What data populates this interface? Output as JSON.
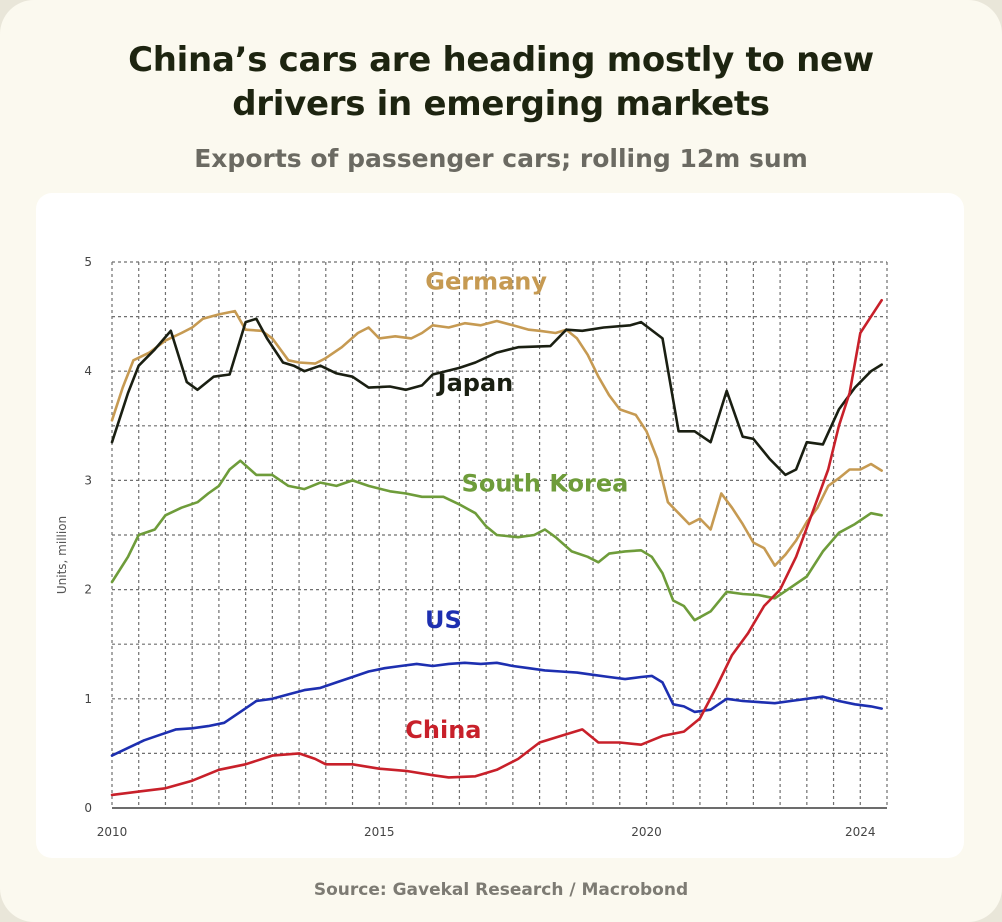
{
  "title": "China’s cars are heading mostly to new\ndrivers in emerging markets",
  "subtitle": "Exports of passenger cars; rolling 12m sum",
  "source": "Source: Gavekal Research / Macrobond",
  "chart_data": {
    "type": "line",
    "ylabel": "Units, million",
    "xlabel": "",
    "xlim": [
      2010,
      2024.5
    ],
    "ylim": [
      0,
      5
    ],
    "x_ticks": [
      {
        "value": 2010,
        "label": "2010"
      },
      {
        "value": 2015,
        "label": "2015"
      },
      {
        "value": 2020,
        "label": "2020"
      },
      {
        "value": 2024,
        "label": "2024"
      }
    ],
    "y_ticks": [
      {
        "value": 0,
        "label": "0"
      },
      {
        "value": 1,
        "label": "1"
      },
      {
        "value": 2,
        "label": "2"
      },
      {
        "value": 3,
        "label": "3"
      },
      {
        "value": 4,
        "label": "4"
      },
      {
        "value": 5,
        "label": "5"
      }
    ],
    "grid": true,
    "series": [
      {
        "name": "Germany",
        "color": "#c69a52",
        "label_at": [
          2017,
          4.75
        ],
        "points": [
          [
            2010,
            3.55
          ],
          [
            2010.2,
            3.85
          ],
          [
            2010.4,
            4.1
          ],
          [
            2010.7,
            4.17
          ],
          [
            2011,
            4.28
          ],
          [
            2011.3,
            4.35
          ],
          [
            2011.5,
            4.4
          ],
          [
            2011.7,
            4.48
          ],
          [
            2012,
            4.52
          ],
          [
            2012.3,
            4.55
          ],
          [
            2012.5,
            4.38
          ],
          [
            2012.8,
            4.37
          ],
          [
            2013,
            4.3
          ],
          [
            2013.3,
            4.1
          ],
          [
            2013.5,
            4.08
          ],
          [
            2013.8,
            4.07
          ],
          [
            2014,
            4.12
          ],
          [
            2014.3,
            4.22
          ],
          [
            2014.6,
            4.35
          ],
          [
            2014.8,
            4.4
          ],
          [
            2015,
            4.3
          ],
          [
            2015.3,
            4.32
          ],
          [
            2015.6,
            4.3
          ],
          [
            2015.8,
            4.35
          ],
          [
            2016,
            4.42
          ],
          [
            2016.3,
            4.4
          ],
          [
            2016.6,
            4.44
          ],
          [
            2016.9,
            4.42
          ],
          [
            2017.2,
            4.46
          ],
          [
            2017.5,
            4.42
          ],
          [
            2017.8,
            4.38
          ],
          [
            2018,
            4.37
          ],
          [
            2018.3,
            4.35
          ],
          [
            2018.5,
            4.38
          ],
          [
            2018.7,
            4.3
          ],
          [
            2018.9,
            4.15
          ],
          [
            2019.1,
            3.95
          ],
          [
            2019.3,
            3.78
          ],
          [
            2019.5,
            3.65
          ],
          [
            2019.8,
            3.6
          ],
          [
            2020,
            3.45
          ],
          [
            2020.2,
            3.2
          ],
          [
            2020.4,
            2.8
          ],
          [
            2020.6,
            2.7
          ],
          [
            2020.8,
            2.6
          ],
          [
            2021,
            2.65
          ],
          [
            2021.2,
            2.55
          ],
          [
            2021.4,
            2.88
          ],
          [
            2021.6,
            2.75
          ],
          [
            2021.8,
            2.6
          ],
          [
            2022,
            2.43
          ],
          [
            2022.2,
            2.38
          ],
          [
            2022.4,
            2.22
          ],
          [
            2022.6,
            2.32
          ],
          [
            2022.8,
            2.45
          ],
          [
            2023,
            2.62
          ],
          [
            2023.2,
            2.75
          ],
          [
            2023.4,
            2.95
          ],
          [
            2023.6,
            3.02
          ],
          [
            2023.8,
            3.1
          ],
          [
            2024,
            3.1
          ],
          [
            2024.2,
            3.15
          ],
          [
            2024.4,
            3.09
          ]
        ]
      },
      {
        "name": "Japan",
        "color": "#1a1f12",
        "label_at": [
          2016.8,
          3.82
        ],
        "points": [
          [
            2010,
            3.35
          ],
          [
            2010.3,
            3.8
          ],
          [
            2010.5,
            4.05
          ],
          [
            2010.8,
            4.2
          ],
          [
            2011.1,
            4.37
          ],
          [
            2011.4,
            3.9
          ],
          [
            2011.6,
            3.83
          ],
          [
            2011.9,
            3.95
          ],
          [
            2012.2,
            3.97
          ],
          [
            2012.5,
            4.45
          ],
          [
            2012.7,
            4.48
          ],
          [
            2012.9,
            4.3
          ],
          [
            2013.2,
            4.08
          ],
          [
            2013.4,
            4.05
          ],
          [
            2013.6,
            4.0
          ],
          [
            2013.9,
            4.05
          ],
          [
            2014.2,
            3.98
          ],
          [
            2014.5,
            3.95
          ],
          [
            2014.8,
            3.85
          ],
          [
            2015.2,
            3.86
          ],
          [
            2015.5,
            3.83
          ],
          [
            2015.8,
            3.87
          ],
          [
            2016,
            3.97
          ],
          [
            2016.5,
            4.03
          ],
          [
            2016.8,
            4.08
          ],
          [
            2017.2,
            4.17
          ],
          [
            2017.6,
            4.22
          ],
          [
            2018.2,
            4.23
          ],
          [
            2018.5,
            4.38
          ],
          [
            2018.8,
            4.37
          ],
          [
            2019.2,
            4.4
          ],
          [
            2019.7,
            4.42
          ],
          [
            2019.9,
            4.45
          ],
          [
            2020.3,
            4.3
          ],
          [
            2020.6,
            3.45
          ],
          [
            2020.9,
            3.45
          ],
          [
            2021.2,
            3.35
          ],
          [
            2021.5,
            3.82
          ],
          [
            2021.8,
            3.4
          ],
          [
            2022,
            3.38
          ],
          [
            2022.3,
            3.2
          ],
          [
            2022.6,
            3.05
          ],
          [
            2022.8,
            3.1
          ],
          [
            2023,
            3.35
          ],
          [
            2023.3,
            3.33
          ],
          [
            2023.6,
            3.65
          ],
          [
            2023.9,
            3.85
          ],
          [
            2024.2,
            4.0
          ],
          [
            2024.4,
            4.06
          ]
        ]
      },
      {
        "name": "South Korea",
        "color": "#6e9c3a",
        "label_at": [
          2018.1,
          2.9
        ],
        "points": [
          [
            2010,
            2.07
          ],
          [
            2010.3,
            2.3
          ],
          [
            2010.5,
            2.5
          ],
          [
            2010.8,
            2.55
          ],
          [
            2011,
            2.68
          ],
          [
            2011.3,
            2.75
          ],
          [
            2011.6,
            2.8
          ],
          [
            2011.8,
            2.88
          ],
          [
            2012,
            2.95
          ],
          [
            2012.2,
            3.1
          ],
          [
            2012.4,
            3.18
          ],
          [
            2012.7,
            3.05
          ],
          [
            2013,
            3.05
          ],
          [
            2013.3,
            2.95
          ],
          [
            2013.6,
            2.92
          ],
          [
            2013.9,
            2.98
          ],
          [
            2014.2,
            2.95
          ],
          [
            2014.5,
            3.0
          ],
          [
            2014.8,
            2.95
          ],
          [
            2015.2,
            2.9
          ],
          [
            2015.5,
            2.88
          ],
          [
            2015.8,
            2.85
          ],
          [
            2016.2,
            2.85
          ],
          [
            2016.5,
            2.78
          ],
          [
            2016.8,
            2.7
          ],
          [
            2017,
            2.58
          ],
          [
            2017.2,
            2.5
          ],
          [
            2017.6,
            2.48
          ],
          [
            2017.9,
            2.5
          ],
          [
            2018.1,
            2.55
          ],
          [
            2018.3,
            2.48
          ],
          [
            2018.6,
            2.35
          ],
          [
            2018.9,
            2.3
          ],
          [
            2019.1,
            2.25
          ],
          [
            2019.3,
            2.33
          ],
          [
            2019.6,
            2.35
          ],
          [
            2019.9,
            2.36
          ],
          [
            2020.1,
            2.3
          ],
          [
            2020.3,
            2.15
          ],
          [
            2020.5,
            1.9
          ],
          [
            2020.7,
            1.85
          ],
          [
            2020.9,
            1.72
          ],
          [
            2021.2,
            1.8
          ],
          [
            2021.5,
            1.98
          ],
          [
            2021.8,
            1.96
          ],
          [
            2022.1,
            1.95
          ],
          [
            2022.4,
            1.92
          ],
          [
            2022.7,
            2.02
          ],
          [
            2023,
            2.12
          ],
          [
            2023.3,
            2.35
          ],
          [
            2023.6,
            2.52
          ],
          [
            2023.9,
            2.6
          ],
          [
            2024.2,
            2.7
          ],
          [
            2024.4,
            2.68
          ]
        ]
      },
      {
        "name": "US",
        "color": "#1d2fb0",
        "label_at": [
          2016.2,
          1.65
        ],
        "points": [
          [
            2010,
            0.48
          ],
          [
            2010.3,
            0.55
          ],
          [
            2010.6,
            0.62
          ],
          [
            2010.9,
            0.67
          ],
          [
            2011.2,
            0.72
          ],
          [
            2011.5,
            0.73
          ],
          [
            2011.8,
            0.75
          ],
          [
            2012.1,
            0.78
          ],
          [
            2012.4,
            0.88
          ],
          [
            2012.7,
            0.98
          ],
          [
            2013,
            1.0
          ],
          [
            2013.3,
            1.04
          ],
          [
            2013.6,
            1.08
          ],
          [
            2013.9,
            1.1
          ],
          [
            2014.2,
            1.15
          ],
          [
            2014.5,
            1.2
          ],
          [
            2014.8,
            1.25
          ],
          [
            2015.1,
            1.28
          ],
          [
            2015.4,
            1.3
          ],
          [
            2015.7,
            1.32
          ],
          [
            2016,
            1.3
          ],
          [
            2016.3,
            1.32
          ],
          [
            2016.6,
            1.33
          ],
          [
            2016.9,
            1.32
          ],
          [
            2017.2,
            1.33
          ],
          [
            2017.5,
            1.3
          ],
          [
            2017.8,
            1.28
          ],
          [
            2018.1,
            1.26
          ],
          [
            2018.4,
            1.25
          ],
          [
            2018.7,
            1.24
          ],
          [
            2019,
            1.22
          ],
          [
            2019.3,
            1.2
          ],
          [
            2019.6,
            1.18
          ],
          [
            2019.9,
            1.2
          ],
          [
            2020.1,
            1.21
          ],
          [
            2020.3,
            1.15
          ],
          [
            2020.5,
            0.95
          ],
          [
            2020.7,
            0.93
          ],
          [
            2020.9,
            0.88
          ],
          [
            2021.2,
            0.9
          ],
          [
            2021.5,
            1.0
          ],
          [
            2021.8,
            0.98
          ],
          [
            2022.1,
            0.97
          ],
          [
            2022.4,
            0.96
          ],
          [
            2022.7,
            0.98
          ],
          [
            2023,
            1.0
          ],
          [
            2023.3,
            1.02
          ],
          [
            2023.6,
            0.98
          ],
          [
            2023.9,
            0.95
          ],
          [
            2024.2,
            0.93
          ],
          [
            2024.4,
            0.91
          ]
        ]
      },
      {
        "name": "China",
        "color": "#c8202a",
        "label_at": [
          2016.2,
          0.64
        ],
        "points": [
          [
            2010,
            0.12
          ],
          [
            2010.5,
            0.15
          ],
          [
            2011,
            0.18
          ],
          [
            2011.5,
            0.25
          ],
          [
            2012,
            0.35
          ],
          [
            2012.5,
            0.4
          ],
          [
            2013,
            0.48
          ],
          [
            2013.5,
            0.5
          ],
          [
            2013.8,
            0.45
          ],
          [
            2014,
            0.4
          ],
          [
            2014.5,
            0.4
          ],
          [
            2015,
            0.36
          ],
          [
            2015.5,
            0.34
          ],
          [
            2016,
            0.3
          ],
          [
            2016.3,
            0.28
          ],
          [
            2016.8,
            0.29
          ],
          [
            2017.2,
            0.35
          ],
          [
            2017.6,
            0.45
          ],
          [
            2018,
            0.6
          ],
          [
            2018.4,
            0.66
          ],
          [
            2018.8,
            0.72
          ],
          [
            2019.1,
            0.6
          ],
          [
            2019.5,
            0.6
          ],
          [
            2019.9,
            0.58
          ],
          [
            2020.3,
            0.66
          ],
          [
            2020.7,
            0.7
          ],
          [
            2021,
            0.82
          ],
          [
            2021.3,
            1.1
          ],
          [
            2021.6,
            1.4
          ],
          [
            2021.9,
            1.6
          ],
          [
            2022.2,
            1.85
          ],
          [
            2022.5,
            2.0
          ],
          [
            2022.8,
            2.3
          ],
          [
            2023.1,
            2.7
          ],
          [
            2023.4,
            3.1
          ],
          [
            2023.6,
            3.5
          ],
          [
            2023.8,
            3.8
          ],
          [
            2024,
            4.35
          ],
          [
            2024.2,
            4.5
          ],
          [
            2024.4,
            4.65
          ]
        ]
      }
    ]
  }
}
